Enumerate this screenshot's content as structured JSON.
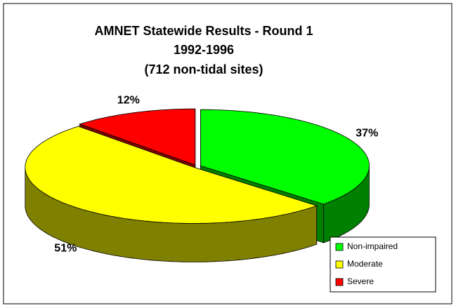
{
  "chart_data": {
    "type": "pie",
    "title": [
      "AMNET Statewide Results - Round 1",
      "1992-1996",
      "(712 non-tidal sites)"
    ],
    "categories": [
      "Non-impaired",
      "Moderate",
      "Severe"
    ],
    "values": [
      37,
      51,
      12
    ],
    "value_labels": [
      "37%",
      "51%",
      "12%"
    ],
    "colors": [
      "#00ff00",
      "#ffff00",
      "#ff0000"
    ],
    "legend": "bottom-right"
  }
}
